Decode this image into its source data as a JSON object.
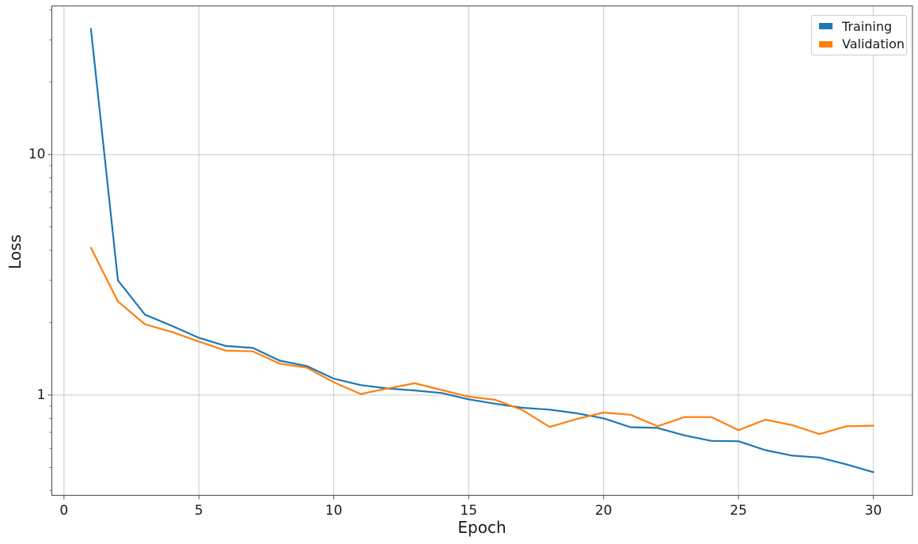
{
  "chart_data": {
    "type": "line",
    "title": "",
    "xlabel": "Epoch",
    "ylabel": "Loss",
    "y_scale": "log",
    "grid": true,
    "legend_position": "upper right",
    "x": [
      1,
      2,
      3,
      4,
      5,
      6,
      7,
      8,
      9,
      10,
      11,
      12,
      13,
      14,
      15,
      16,
      17,
      18,
      19,
      20,
      21,
      22,
      23,
      24,
      25,
      26,
      27,
      28,
      29,
      30
    ],
    "series": [
      {
        "name": "Training",
        "color": "#1f77b4",
        "values": [
          33.3,
          3.0,
          2.16,
          1.94,
          1.73,
          1.6,
          1.57,
          1.39,
          1.32,
          1.17,
          1.1,
          1.065,
          1.045,
          1.02,
          0.96,
          0.92,
          0.885,
          0.87,
          0.84,
          0.8,
          0.735,
          0.73,
          0.68,
          0.645,
          0.643,
          0.59,
          0.56,
          0.55,
          0.515,
          0.478
        ]
      },
      {
        "name": "Validation",
        "color": "#ff7f0e",
        "values": [
          4.1,
          2.45,
          1.97,
          1.83,
          1.67,
          1.53,
          1.52,
          1.35,
          1.3,
          1.13,
          1.01,
          1.065,
          1.12,
          1.05,
          0.985,
          0.955,
          0.865,
          0.737,
          0.795,
          0.846,
          0.828,
          0.742,
          0.81,
          0.81,
          0.715,
          0.79,
          0.75,
          0.688,
          0.742,
          0.746
        ]
      }
    ],
    "xlim": [
      -0.45,
      31.45
    ],
    "ylim": [
      0.383,
      41.5
    ],
    "x_ticks": [
      0,
      5,
      10,
      15,
      20,
      25,
      30
    ],
    "x_tick_labels": [
      "0",
      "5",
      "10",
      "15",
      "20",
      "25",
      "30"
    ],
    "y_major_ticks": [
      1,
      10
    ],
    "y_major_tick_labels": [
      "1",
      "10"
    ],
    "y_minor_ticks": [
      0.4,
      0.5,
      0.6,
      0.7,
      0.8,
      0.9,
      2,
      3,
      4,
      5,
      6,
      7,
      8,
      9,
      20,
      30,
      40
    ],
    "colors": {
      "grid": "#c8c8c8",
      "frame": "#4a4a4a",
      "background": "#ffffff"
    }
  }
}
